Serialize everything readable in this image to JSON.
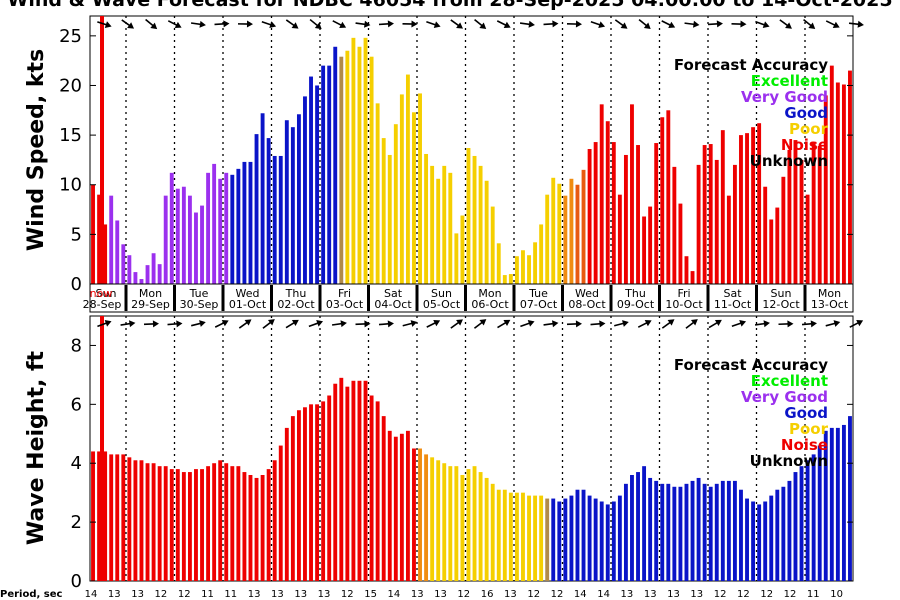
{
  "title": "Wind & Wave Forecast for NDBC 46054 from 28-Sep-2025 04:00:00 to 14-Oct-2025",
  "colors": {
    "excellent": "#00ee00",
    "very_good": "#9b30ee",
    "good": "#0a14c8",
    "poor": "#f5cf00",
    "noise": "#ee0000",
    "unknown": "#000000",
    "poor_orange": "#f08c10",
    "transition": "#b08a4a",
    "noise_orange": "#e85a10"
  },
  "days": [
    {
      "name": "Sun",
      "date": "28-Sep"
    },
    {
      "name": "Mon",
      "date": "29-Sep"
    },
    {
      "name": "Tue",
      "date": "30-Sep"
    },
    {
      "name": "Wed",
      "date": "01-Oct"
    },
    {
      "name": "Thu",
      "date": "02-Oct"
    },
    {
      "name": "Fri",
      "date": "03-Oct"
    },
    {
      "name": "Sat",
      "date": "04-Oct"
    },
    {
      "name": "Sun",
      "date": "05-Oct"
    },
    {
      "name": "Mon",
      "date": "06-Oct"
    },
    {
      "name": "Tue",
      "date": "07-Oct"
    },
    {
      "name": "Wed",
      "date": "08-Oct"
    },
    {
      "name": "Thu",
      "date": "09-Oct"
    },
    {
      "name": "Fri",
      "date": "10-Oct"
    },
    {
      "name": "Sat",
      "date": "11-Oct"
    },
    {
      "name": "Sun",
      "date": "12-Oct"
    },
    {
      "name": "Mon",
      "date": "13-Oct"
    }
  ],
  "now_label": "now",
  "period_label": "Period, sec",
  "periods": [
    "14",
    "13",
    "13",
    "12",
    "12",
    "11",
    "11",
    "13",
    "13",
    "13",
    "13",
    "12",
    "15",
    "14",
    "13",
    "13",
    "12",
    "16",
    "13",
    "12",
    "12",
    "14",
    "14",
    "13",
    "13",
    "13",
    "13",
    "12",
    "12",
    "12",
    "12",
    "11",
    "10"
  ],
  "chart_data": [
    {
      "type": "bar",
      "name": "wind",
      "ylabel": "Wind Speed, kts",
      "ylim": [
        0,
        27
      ],
      "yticks": [
        "0",
        "5",
        "10",
        "15",
        "20",
        "25"
      ],
      "ytick_values": [
        0,
        5,
        10,
        15,
        20,
        25
      ],
      "legend": {
        "title": "Forecast Accuracy",
        "items": [
          "Excellent",
          "Very Good",
          "Good",
          "Poor",
          "Noise",
          "Unknown"
        ],
        "placement": "top-right"
      },
      "spike": {
        "value": 27,
        "color": "noise"
      },
      "values": [
        10.0,
        9.0,
        6.0,
        8.9,
        6.4,
        4.0,
        2.9,
        1.2,
        0.5,
        1.9,
        3.1,
        2.0,
        8.9,
        11.2,
        9.6,
        9.8,
        8.9,
        7.2,
        7.9,
        11.2,
        12.1,
        10.6,
        11.2,
        11.0,
        11.6,
        12.3,
        12.3,
        15.1,
        17.2,
        14.7,
        12.9,
        12.9,
        16.5,
        15.8,
        17.1,
        18.9,
        20.9,
        20.0,
        22.0,
        22.0,
        23.9,
        22.9,
        23.5,
        24.8,
        23.9,
        24.8,
        22.9,
        18.2,
        14.7,
        13.0,
        16.1,
        19.1,
        21.1,
        17.3,
        19.2,
        13.1,
        11.9,
        10.6,
        11.9,
        11.2,
        5.1,
        6.9,
        13.7,
        12.9,
        11.9,
        10.4,
        7.8,
        4.1,
        0.9,
        1.0,
        2.8,
        3.4,
        2.9,
        4.2,
        6.0,
        9.0,
        10.7,
        10.1,
        8.9,
        10.6,
        10.0,
        11.5,
        13.6,
        14.3,
        18.1,
        16.4,
        14.3,
        9.0,
        13.0,
        18.1,
        14.0,
        6.8,
        7.8,
        14.2,
        16.8,
        17.5,
        11.8,
        8.1,
        2.8,
        1.3,
        12.0,
        14.0,
        14.1,
        12.5,
        15.5,
        8.9,
        12.0,
        15.0,
        15.2,
        15.8,
        16.2,
        9.8,
        6.5,
        7.7,
        10.8,
        13.5,
        14.5,
        12.5,
        9.0,
        14.2,
        13.9,
        19.0,
        22.0,
        20.3,
        20.1,
        21.5
      ],
      "codes": [
        "noise",
        "noise",
        "noise",
        "very_good",
        "very_good",
        "very_good",
        "very_good",
        "very_good",
        "very_good",
        "very_good",
        "very_good",
        "very_good",
        "very_good",
        "very_good",
        "very_good",
        "very_good",
        "very_good",
        "very_good",
        "very_good",
        "very_good",
        "very_good",
        "very_good",
        "very_good",
        "good",
        "good",
        "good",
        "good",
        "good",
        "good",
        "good",
        "good",
        "good",
        "good",
        "good",
        "good",
        "good",
        "good",
        "good",
        "good",
        "good",
        "good",
        "transition",
        "poor",
        "poor",
        "poor",
        "poor",
        "poor",
        "poor",
        "poor",
        "poor",
        "poor",
        "poor",
        "poor",
        "poor",
        "poor",
        "poor",
        "poor",
        "poor",
        "poor",
        "poor",
        "poor",
        "poor",
        "poor",
        "poor",
        "poor",
        "poor",
        "poor",
        "poor",
        "poor",
        "poor",
        "poor",
        "poor",
        "poor",
        "poor",
        "poor",
        "poor",
        "poor",
        "poor",
        "poor_orange",
        "poor_orange",
        "noise_orange",
        "noise_orange",
        "noise",
        "noise",
        "noise",
        "noise",
        "noise",
        "noise",
        "noise",
        "noise",
        "noise",
        "noise",
        "noise",
        "noise",
        "noise",
        "noise",
        "noise",
        "noise",
        "noise",
        "noise",
        "noise",
        "noise",
        "noise",
        "noise",
        "noise",
        "noise",
        "noise",
        "noise",
        "noise",
        "noise",
        "noise",
        "noise",
        "noise",
        "noise",
        "noise",
        "noise",
        "noise",
        "noise",
        "noise",
        "noise",
        "noise",
        "noise",
        "noise",
        "noise",
        "noise",
        "noise",
        "noise",
        "noise"
      ]
    },
    {
      "type": "bar",
      "name": "wave",
      "ylabel": "Wave Height, ft",
      "ylim": [
        0,
        9
      ],
      "yticks": [
        "0",
        "2",
        "4",
        "6",
        "8"
      ],
      "ytick_values": [
        0,
        2,
        4,
        6,
        8
      ],
      "legend": {
        "title": "Forecast Accuracy",
        "items": [
          "Excellent",
          "Very Good",
          "Good",
          "Poor",
          "Noise",
          "Unknown"
        ],
        "placement": "top-right"
      },
      "spike": {
        "value": 9,
        "color": "noise"
      },
      "values": [
        4.4,
        4.4,
        4.4,
        4.3,
        4.3,
        4.3,
        4.2,
        4.1,
        4.1,
        4.0,
        4.0,
        3.9,
        3.9,
        3.8,
        3.8,
        3.7,
        3.7,
        3.8,
        3.8,
        3.9,
        4.0,
        4.1,
        4.0,
        3.9,
        3.9,
        3.7,
        3.6,
        3.5,
        3.6,
        3.8,
        4.1,
        4.6,
        5.2,
        5.6,
        5.8,
        5.9,
        6.0,
        6.0,
        6.1,
        6.3,
        6.7,
        6.9,
        6.6,
        6.8,
        6.8,
        6.8,
        6.3,
        6.1,
        5.6,
        5.1,
        4.9,
        5.0,
        5.1,
        4.5,
        4.5,
        4.3,
        4.2,
        4.1,
        4.0,
        3.9,
        3.9,
        3.6,
        3.8,
        3.9,
        3.7,
        3.5,
        3.3,
        3.1,
        3.1,
        3.0,
        3.0,
        3.0,
        2.9,
        2.9,
        2.9,
        2.8,
        2.8,
        2.7,
        2.8,
        2.9,
        3.1,
        3.1,
        2.9,
        2.8,
        2.7,
        2.6,
        2.7,
        2.9,
        3.3,
        3.6,
        3.7,
        3.9,
        3.5,
        3.4,
        3.3,
        3.3,
        3.2,
        3.2,
        3.3,
        3.4,
        3.5,
        3.3,
        3.2,
        3.3,
        3.4,
        3.4,
        3.4,
        3.1,
        2.8,
        2.7,
        2.6,
        2.7,
        2.9,
        3.1,
        3.2,
        3.4,
        3.7,
        3.9,
        4.1,
        4.3,
        4.6,
        5.1,
        5.2,
        5.2,
        5.3,
        5.6
      ],
      "codes": [
        "noise",
        "noise",
        "noise",
        "noise",
        "noise",
        "noise",
        "noise",
        "noise",
        "noise",
        "noise",
        "noise",
        "noise",
        "noise",
        "noise",
        "noise",
        "noise",
        "noise",
        "noise",
        "noise",
        "noise",
        "noise",
        "noise",
        "noise",
        "noise",
        "noise",
        "noise",
        "noise",
        "noise",
        "noise",
        "noise",
        "noise",
        "noise",
        "noise",
        "noise",
        "noise",
        "noise",
        "noise",
        "noise",
        "noise",
        "noise",
        "noise",
        "noise",
        "noise",
        "noise",
        "noise",
        "noise",
        "noise",
        "noise",
        "noise",
        "noise",
        "noise",
        "noise",
        "noise",
        "noise",
        "poor_orange",
        "poor_orange",
        "poor",
        "poor",
        "poor",
        "poor",
        "poor",
        "poor",
        "poor",
        "poor",
        "poor",
        "poor",
        "poor",
        "poor",
        "poor",
        "poor",
        "poor",
        "poor",
        "poor",
        "poor",
        "poor",
        "transition",
        "good",
        "good",
        "good",
        "good",
        "good",
        "good",
        "good",
        "good",
        "good",
        "good",
        "good",
        "good",
        "good",
        "good",
        "good",
        "good",
        "good",
        "good",
        "good",
        "good",
        "good",
        "good",
        "good",
        "good",
        "good",
        "good",
        "good",
        "good",
        "good",
        "good",
        "good",
        "good",
        "good",
        "good",
        "good",
        "good",
        "good",
        "good",
        "good",
        "good",
        "good",
        "good",
        "good",
        "good",
        "good",
        "good",
        "good",
        "good",
        "good",
        "good"
      ]
    }
  ]
}
